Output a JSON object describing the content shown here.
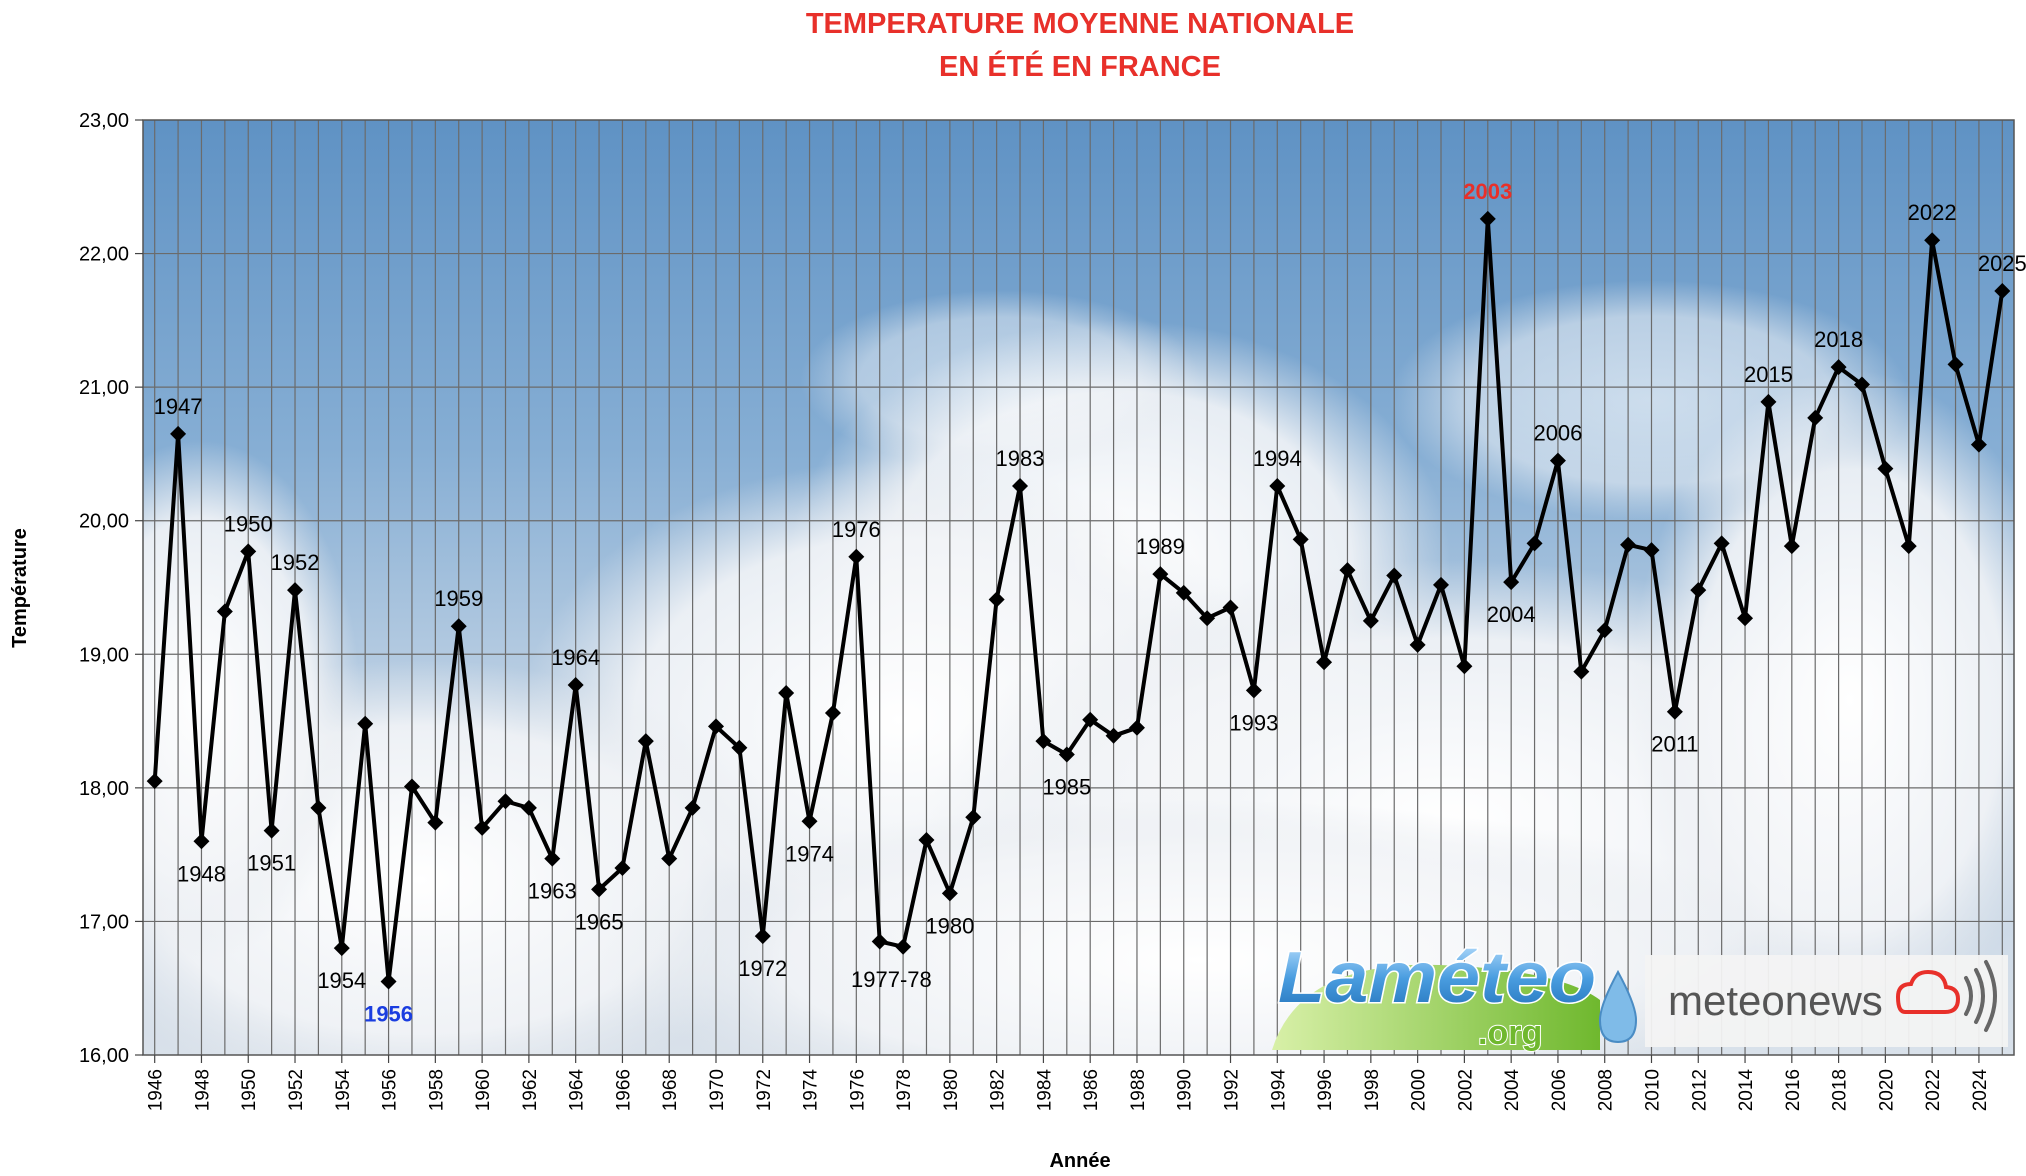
{
  "chart_data": {
    "type": "line",
    "title_line1": "TEMPERATURE MOYENNE NATIONALE",
    "title_line2": "EN ÉTÉ EN FRANCE",
    "xlabel": "Année",
    "ylabel": "Température",
    "ylim": [
      16,
      23
    ],
    "y_ticks": [
      "16,00",
      "17,00",
      "18,00",
      "19,00",
      "20,00",
      "21,00",
      "22,00",
      "23,00"
    ],
    "x_ticks": [
      "1946",
      "1948",
      "1950",
      "1952",
      "1954",
      "1956",
      "1958",
      "1960",
      "1962",
      "1964",
      "1966",
      "1968",
      "1970",
      "1972",
      "1974",
      "1976",
      "1978",
      "1980",
      "1982",
      "1984",
      "1986",
      "1988",
      "1990",
      "1992",
      "1994",
      "1996",
      "1998",
      "2000",
      "2002",
      "2004",
      "2006",
      "2008",
      "2010",
      "2012",
      "2014",
      "2016",
      "2018",
      "2020",
      "2022",
      "2024"
    ],
    "grid": true,
    "legend": "none",
    "series_color": "#000000",
    "title_color": "#e8302a",
    "min_color": "#1a3de0",
    "x": [
      1946,
      1947,
      1948,
      1949,
      1950,
      1951,
      1952,
      1953,
      1954,
      1955,
      1956,
      1957,
      1958,
      1959,
      1960,
      1961,
      1962,
      1963,
      1964,
      1965,
      1966,
      1967,
      1968,
      1969,
      1970,
      1971,
      1972,
      1973,
      1974,
      1975,
      1976,
      1977,
      1978,
      1979,
      1980,
      1981,
      1982,
      1983,
      1984,
      1985,
      1986,
      1987,
      1988,
      1989,
      1990,
      1991,
      1992,
      1993,
      1994,
      1995,
      1996,
      1997,
      1998,
      1999,
      2000,
      2001,
      2002,
      2003,
      2004,
      2005,
      2006,
      2007,
      2008,
      2009,
      2010,
      2011,
      2012,
      2013,
      2014,
      2015,
      2016,
      2017,
      2018,
      2019,
      2020,
      2021,
      2022,
      2023,
      2024,
      2025
    ],
    "values": [
      18.05,
      20.65,
      17.6,
      19.32,
      19.77,
      17.68,
      19.48,
      17.85,
      16.8,
      18.48,
      16.55,
      18.01,
      17.74,
      19.21,
      17.7,
      17.9,
      17.85,
      17.47,
      18.77,
      17.24,
      17.4,
      18.35,
      17.47,
      17.85,
      18.46,
      18.3,
      16.89,
      18.71,
      17.75,
      18.56,
      19.73,
      16.85,
      16.81,
      17.61,
      17.21,
      17.78,
      19.41,
      20.26,
      18.35,
      18.25,
      18.51,
      18.39,
      18.45,
      19.6,
      19.46,
      19.27,
      19.35,
      18.73,
      20.26,
      19.86,
      18.94,
      19.63,
      19.25,
      19.59,
      19.07,
      19.52,
      18.91,
      22.26,
      19.54,
      19.83,
      20.45,
      18.87,
      19.18,
      19.82,
      19.78,
      18.57,
      19.48,
      19.83,
      19.27,
      20.89,
      19.81,
      20.77,
      21.15,
      21.02,
      20.39,
      19.81,
      22.1,
      21.17,
      20.57,
      21.72
    ],
    "annotations": [
      {
        "year": 1947,
        "text": "1947",
        "pos": "above"
      },
      {
        "year": 1948,
        "text": "1948",
        "pos": "below"
      },
      {
        "year": 1950,
        "text": "1950",
        "pos": "above"
      },
      {
        "year": 1951,
        "text": "1951",
        "pos": "below"
      },
      {
        "year": 1952,
        "text": "1952",
        "pos": "above"
      },
      {
        "year": 1954,
        "text": "1954",
        "pos": "below"
      },
      {
        "year": 1956,
        "text": "1956",
        "pos": "below",
        "style": "min"
      },
      {
        "year": 1959,
        "text": "1959",
        "pos": "above"
      },
      {
        "year": 1963,
        "text": "1963",
        "pos": "below"
      },
      {
        "year": 1964,
        "text": "1964",
        "pos": "above"
      },
      {
        "year": 1965,
        "text": "1965",
        "pos": "below"
      },
      {
        "year": 1972,
        "text": "1972",
        "pos": "below"
      },
      {
        "year": 1974,
        "text": "1974",
        "pos": "below"
      },
      {
        "year": 1976,
        "text": "1976",
        "pos": "above"
      },
      {
        "year": 1977.5,
        "text": "1977-78",
        "pos": "below"
      },
      {
        "year": 1980,
        "text": "1980",
        "pos": "below"
      },
      {
        "year": 1983,
        "text": "1983",
        "pos": "above"
      },
      {
        "year": 1985,
        "text": "1985",
        "pos": "below"
      },
      {
        "year": 1989,
        "text": "1989",
        "pos": "above"
      },
      {
        "year": 1993,
        "text": "1993",
        "pos": "below"
      },
      {
        "year": 1994,
        "text": "1994",
        "pos": "above"
      },
      {
        "year": 2003,
        "text": "2003",
        "pos": "above",
        "style": "max"
      },
      {
        "year": 2004,
        "text": "2004",
        "pos": "below"
      },
      {
        "year": 2006,
        "text": "2006",
        "pos": "above"
      },
      {
        "year": 2011,
        "text": "2011",
        "pos": "below"
      },
      {
        "year": 2015,
        "text": "2015",
        "pos": "above"
      },
      {
        "year": 2018,
        "text": "2018",
        "pos": "above"
      },
      {
        "year": 2022,
        "text": "2022",
        "pos": "above"
      },
      {
        "year": 2025,
        "text": "2025",
        "pos": "above"
      }
    ]
  },
  "logos": {
    "lameteo_text": "Laméteo",
    "lameteo_org": ".org",
    "meteonews_text": "meteonews"
  }
}
